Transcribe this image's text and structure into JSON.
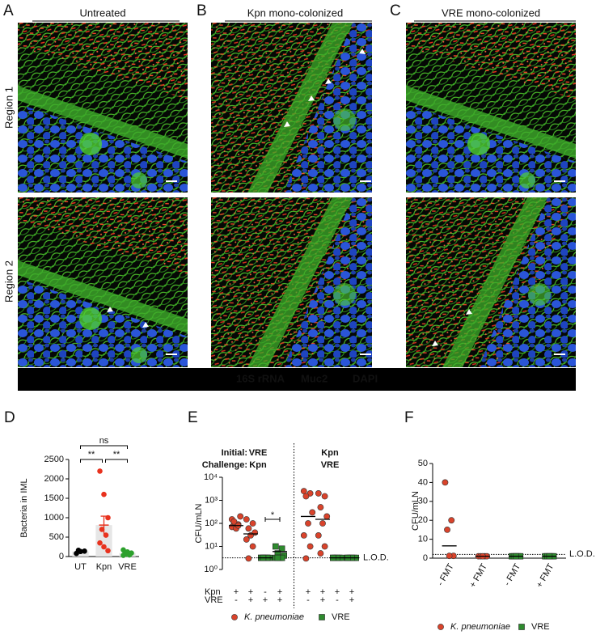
{
  "figure": {
    "panel_letters": [
      "A",
      "B",
      "C"
    ],
    "image_titles": [
      "Untreated",
      "Kpn mono-colonized",
      "VRE mono-colonized"
    ],
    "row_labels": [
      "Region 1",
      "Region 2"
    ],
    "stain_legend": [
      {
        "name": "16S rRNA",
        "color": "#e8321e"
      },
      {
        "name": "Muc2",
        "color": "#6cc04a"
      },
      {
        "name": "DAPI",
        "color": "#2a6ef0"
      }
    ]
  },
  "chart_data": [
    {
      "type": "bar",
      "panel": "D",
      "y_label": "Bacteria in IML",
      "categories": [
        "UT",
        "Kpn",
        "VRE"
      ],
      "values": [
        130,
        810,
        90
      ],
      "errors": [
        25,
        230,
        35
      ],
      "points": [
        [
          80,
          130,
          140,
          160
        ],
        [
          2200,
          1600,
          1000,
          700,
          550,
          350,
          250,
          150
        ],
        [
          170,
          120,
          90,
          60,
          40,
          30
        ]
      ],
      "colors": [
        "#000000",
        "#e8321e",
        "#2ca02c"
      ],
      "bar_color": "#e6e6e6",
      "ylim": [
        0,
        2500
      ],
      "yticks": [
        0,
        500,
        1000,
        1500,
        2000,
        2500
      ],
      "significance": [
        "ns",
        "**",
        "**"
      ]
    },
    {
      "type": "scatter",
      "panel": "E",
      "y_label": "CFU/mLN",
      "log_scale": true,
      "ylim": [
        1,
        10000
      ],
      "yticks": [
        {
          "value": 1,
          "label": "10⁰"
        },
        {
          "value": 10,
          "label": "10¹"
        },
        {
          "value": 100,
          "label": "10²"
        },
        {
          "value": 1000,
          "label": "10³"
        },
        {
          "value": 10000,
          "label": "10⁴"
        }
      ],
      "header_labels": [
        "Initial:",
        "Challenge:"
      ],
      "groups": [
        [
          "VRE",
          "Kpn"
        ],
        [
          "Kpn",
          "VRE"
        ]
      ],
      "row_labels": [
        "Kpn",
        "VRE"
      ],
      "rows": [
        [
          "+",
          "+",
          "-",
          "+",
          "+",
          "+",
          "+",
          "+"
        ],
        [
          "-",
          "+",
          "+",
          "+",
          "-",
          "+",
          "-",
          "+"
        ]
      ],
      "series": [
        {
          "name": "K. pneumoniae",
          "color": "#d9432b",
          "marker": "circle",
          "italic": true,
          "values": [
            [
              70,
              90,
              110,
              200,
              60,
              150,
              80,
              120
            ],
            [
              150,
              100,
              60,
              40,
              30,
              20,
              10,
              3
            ],
            null,
            null,
            [
              2500,
              2000,
              1500,
              300,
              100,
              30,
              10,
              3
            ],
            [
              2000,
              1500,
              500,
              200,
              100,
              30,
              10,
              5
            ],
            null,
            null
          ],
          "means": [
            80,
            35,
            null,
            null,
            200,
            150,
            null,
            null
          ]
        },
        {
          "name": "VRE",
          "color": "#2e8b2e",
          "marker": "square",
          "italic": false,
          "values": [
            null,
            null,
            [
              3.2,
              3.2,
              3.2,
              3.2,
              3.2,
              3.2,
              3.2,
              3.2
            ],
            [
              10,
              8,
              5,
              4,
              3.2,
              3.2,
              3.2,
              3.2
            ],
            null,
            null,
            [
              3.2,
              3.2,
              3.2,
              3.2,
              3.2,
              3.2
            ],
            [
              3.2,
              3.2,
              3.2,
              3.2,
              3.2,
              3.2
            ]
          ],
          "means": [
            null,
            null,
            3.2,
            6,
            null,
            null,
            3.2,
            3.2
          ]
        }
      ],
      "lod": 3.2,
      "lod_label": "L.O.D.",
      "significance": [
        "*"
      ]
    },
    {
      "type": "scatter",
      "panel": "F",
      "y_label": "CFU/mLN",
      "log_scale": false,
      "ylim": [
        0,
        50
      ],
      "yticks": [
        0,
        10,
        20,
        30,
        40,
        50
      ],
      "categories": [
        "- FMT",
        "+ FMT",
        "- FMT",
        "+ FMT"
      ],
      "series": [
        {
          "name": "K. pneumoniae",
          "color": "#d9432b",
          "marker": "circle",
          "italic": true,
          "values": [
            [
              40,
              20,
              15,
              1.2,
              1.2
            ],
            [
              1,
              1,
              1,
              1,
              1
            ],
            null,
            null
          ],
          "means": [
            6.5,
            1,
            null,
            null
          ]
        },
        {
          "name": "VRE",
          "color": "#2e8b2e",
          "marker": "square",
          "italic": false,
          "values": [
            null,
            null,
            [
              1,
              1,
              1,
              1,
              1
            ],
            [
              1,
              1,
              1,
              1,
              1
            ]
          ],
          "means": [
            null,
            null,
            1,
            1
          ]
        }
      ],
      "lod": 2,
      "lod_label": "L.O.D."
    }
  ]
}
